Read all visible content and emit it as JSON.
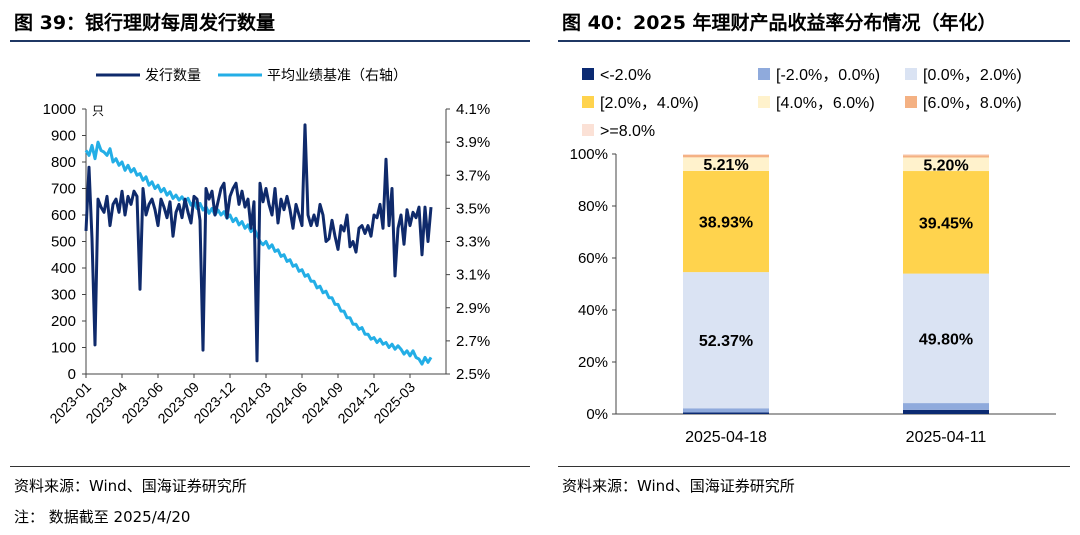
{
  "left": {
    "title": "图 39：银行理财每周发行数量",
    "source": "资料来源：Wind、国海证券研究所",
    "note": "注：  数据截至 2025/4/20"
  },
  "right": {
    "title": "图 40：2025 年理财产品收益率分布情况（年化）",
    "source": "资料来源：Wind、国海证券研究所"
  },
  "colors": {
    "navy": "#0f2a6b",
    "cyan": "#23aee6",
    "c1": "#0b2a72",
    "c2": "#8faadc",
    "c3": "#dae3f3",
    "c4": "#ffd34d",
    "c5": "#fff2cc",
    "c6": "#f4b183",
    "c7": "#fbe1d6"
  },
  "chart_data": [
    {
      "type": "line",
      "title": "",
      "y_unit_label": "只",
      "ylim_left": [
        0,
        1000
      ],
      "yticks_left": [
        "0",
        "100",
        "200",
        "300",
        "400",
        "500",
        "600",
        "700",
        "800",
        "900",
        "1000"
      ],
      "ylim_right": [
        2.5,
        4.1
      ],
      "yticks_right": [
        "2.5%",
        "2.7%",
        "2.9%",
        "3.1%",
        "3.3%",
        "3.5%",
        "3.7%",
        "3.9%",
        "4.1%"
      ],
      "xlim": [
        0,
        120
      ],
      "xticks": [
        {
          "pos": 0,
          "label": "2023-01"
        },
        {
          "pos": 12,
          "label": "2023-04"
        },
        {
          "pos": 24,
          "label": "2023-06"
        },
        {
          "pos": 36,
          "label": "2023-09"
        },
        {
          "pos": 48,
          "label": "2023-12"
        },
        {
          "pos": 60,
          "label": "2024-03"
        },
        {
          "pos": 72,
          "label": "2024-06"
        },
        {
          "pos": 84,
          "label": "2024-09"
        },
        {
          "pos": 96,
          "label": "2024-12"
        },
        {
          "pos": 108,
          "label": "2025-03"
        }
      ],
      "series": [
        {
          "name": "发行数量",
          "axis": "left",
          "values": [
            [
              0,
              540
            ],
            [
              1,
              780
            ],
            [
              2,
              510
            ],
            [
              3,
              110
            ],
            [
              4,
              660
            ],
            [
              5,
              630
            ],
            [
              6,
              610
            ],
            [
              7,
              670
            ],
            [
              8,
              560
            ],
            [
              9,
              640
            ],
            [
              10,
              660
            ],
            [
              11,
              610
            ],
            [
              12,
              690
            ],
            [
              13,
              600
            ],
            [
              14,
              670
            ],
            [
              15,
              640
            ],
            [
              16,
              690
            ],
            [
              17,
              670
            ],
            [
              18,
              320
            ],
            [
              19,
              700
            ],
            [
              20,
              600
            ],
            [
              21,
              640
            ],
            [
              22,
              660
            ],
            [
              23,
              620
            ],
            [
              24,
              560
            ],
            [
              25,
              660
            ],
            [
              26,
              630
            ],
            [
              27,
              590
            ],
            [
              28,
              650
            ],
            [
              29,
              520
            ],
            [
              30,
              610
            ],
            [
              31,
              640
            ],
            [
              32,
              590
            ],
            [
              33,
              660
            ],
            [
              34,
              610
            ],
            [
              35,
              570
            ],
            [
              36,
              670
            ],
            [
              37,
              660
            ],
            [
              38,
              580
            ],
            [
              39,
              90
            ],
            [
              40,
              700
            ],
            [
              41,
              660
            ],
            [
              42,
              690
            ],
            [
              43,
              600
            ],
            [
              44,
              650
            ],
            [
              45,
              700
            ],
            [
              46,
              720
            ],
            [
              47,
              590
            ],
            [
              48,
              670
            ],
            [
              49,
              700
            ],
            [
              50,
              720
            ],
            [
              51,
              640
            ],
            [
              52,
              690
            ],
            [
              53,
              630
            ],
            [
              54,
              660
            ],
            [
              55,
              550
            ],
            [
              56,
              650
            ],
            [
              57,
              50
            ],
            [
              58,
              720
            ],
            [
              59,
              650
            ],
            [
              60,
              700
            ],
            [
              61,
              640
            ],
            [
              62,
              600
            ],
            [
              63,
              700
            ],
            [
              64,
              570
            ],
            [
              65,
              660
            ],
            [
              66,
              620
            ],
            [
              67,
              670
            ],
            [
              68,
              620
            ],
            [
              69,
              550
            ],
            [
              70,
              640
            ],
            [
              71,
              600
            ],
            [
              72,
              560
            ],
            [
              73,
              940
            ],
            [
              74,
              600
            ],
            [
              75,
              560
            ],
            [
              76,
              600
            ],
            [
              77,
              560
            ],
            [
              78,
              640
            ],
            [
              79,
              600
            ],
            [
              80,
              500
            ],
            [
              81,
              510
            ],
            [
              82,
              580
            ],
            [
              83,
              520
            ],
            [
              84,
              470
            ],
            [
              85,
              560
            ],
            [
              86,
              540
            ],
            [
              87,
              600
            ],
            [
              88,
              480
            ],
            [
              89,
              500
            ],
            [
              90,
              460
            ],
            [
              91,
              550
            ],
            [
              92,
              560
            ],
            [
              93,
              530
            ],
            [
              94,
              560
            ],
            [
              95,
              520
            ],
            [
              96,
              600
            ],
            [
              97,
              590
            ],
            [
              98,
              640
            ],
            [
              99,
              550
            ],
            [
              100,
              810
            ],
            [
              101,
              560
            ],
            [
              102,
              700
            ],
            [
              103,
              370
            ],
            [
              104,
              550
            ],
            [
              105,
              600
            ],
            [
              106,
              490
            ],
            [
              107,
              620
            ],
            [
              108,
              560
            ],
            [
              109,
              610
            ],
            [
              110,
              590
            ],
            [
              111,
              630
            ],
            [
              112,
              450
            ],
            [
              113,
              630
            ],
            [
              114,
              500
            ],
            [
              115,
              630
            ]
          ]
        },
        {
          "name": "平均业绩基准（右轴）",
          "axis": "right",
          "values": [
            [
              0,
              3.85
            ],
            [
              1,
              3.82
            ],
            [
              2,
              3.88
            ],
            [
              3,
              3.8
            ],
            [
              4,
              3.9
            ],
            [
              5,
              3.85
            ],
            [
              6,
              3.84
            ],
            [
              7,
              3.82
            ],
            [
              8,
              3.86
            ],
            [
              9,
              3.78
            ],
            [
              10,
              3.8
            ],
            [
              11,
              3.76
            ],
            [
              12,
              3.78
            ],
            [
              13,
              3.73
            ],
            [
              14,
              3.76
            ],
            [
              15,
              3.72
            ],
            [
              16,
              3.74
            ],
            [
              17,
              3.7
            ],
            [
              18,
              3.71
            ],
            [
              19,
              3.67
            ],
            [
              20,
              3.69
            ],
            [
              21,
              3.64
            ],
            [
              22,
              3.66
            ],
            [
              23,
              3.62
            ],
            [
              24,
              3.64
            ],
            [
              25,
              3.6
            ],
            [
              26,
              3.62
            ],
            [
              27,
              3.58
            ],
            [
              28,
              3.6
            ],
            [
              29,
              3.56
            ],
            [
              30,
              3.58
            ],
            [
              31,
              3.55
            ],
            [
              32,
              3.57
            ],
            [
              33,
              3.54
            ],
            [
              34,
              3.56
            ],
            [
              35,
              3.52
            ],
            [
              36,
              3.54
            ],
            [
              37,
              3.5
            ],
            [
              38,
              3.53
            ],
            [
              39,
              3.49
            ],
            [
              40,
              3.51
            ],
            [
              41,
              3.47
            ],
            [
              42,
              3.5
            ],
            [
              43,
              3.46
            ],
            [
              44,
              3.49
            ],
            [
              45,
              3.46
            ],
            [
              46,
              3.48
            ],
            [
              47,
              3.44
            ],
            [
              48,
              3.46
            ],
            [
              49,
              3.42
            ],
            [
              50,
              3.44
            ],
            [
              51,
              3.4
            ],
            [
              52,
              3.42
            ],
            [
              53,
              3.38
            ],
            [
              54,
              3.4
            ],
            [
              55,
              3.36
            ],
            [
              56,
              3.38
            ],
            [
              57,
              3.34
            ],
            [
              58,
              3.3
            ],
            [
              59,
              3.28
            ],
            [
              60,
              3.3
            ],
            [
              61,
              3.26
            ],
            [
              62,
              3.28
            ],
            [
              63,
              3.24
            ],
            [
              64,
              3.25
            ],
            [
              65,
              3.21
            ],
            [
              66,
              3.22
            ],
            [
              67,
              3.18
            ],
            [
              68,
              3.19
            ],
            [
              69,
              3.15
            ],
            [
              70,
              3.16
            ],
            [
              71,
              3.12
            ],
            [
              72,
              3.13
            ],
            [
              73,
              3.09
            ],
            [
              74,
              3.1
            ],
            [
              75,
              3.06
            ],
            [
              76,
              3.06
            ],
            [
              77,
              3.02
            ],
            [
              78,
              3.03
            ],
            [
              79,
              2.99
            ],
            [
              80,
              3.0
            ],
            [
              81,
              2.96
            ],
            [
              82,
              2.96
            ],
            [
              83,
              2.92
            ],
            [
              84,
              2.92
            ],
            [
              85,
              2.88
            ],
            [
              86,
              2.88
            ],
            [
              87,
              2.84
            ],
            [
              88,
              2.84
            ],
            [
              89,
              2.8
            ],
            [
              90,
              2.8
            ],
            [
              91,
              2.77
            ],
            [
              92,
              2.78
            ],
            [
              93,
              2.74
            ],
            [
              94,
              2.74
            ],
            [
              95,
              2.71
            ],
            [
              96,
              2.72
            ],
            [
              97,
              2.69
            ],
            [
              98,
              2.71
            ],
            [
              99,
              2.68
            ],
            [
              100,
              2.69
            ],
            [
              101,
              2.66
            ],
            [
              102,
              2.68
            ],
            [
              103,
              2.65
            ],
            [
              104,
              2.67
            ],
            [
              105,
              2.65
            ],
            [
              106,
              2.62
            ],
            [
              107,
              2.64
            ],
            [
              108,
              2.61
            ],
            [
              109,
              2.64
            ],
            [
              110,
              2.6
            ],
            [
              111,
              2.59
            ],
            [
              112,
              2.56
            ],
            [
              113,
              2.6
            ],
            [
              114,
              2.57
            ],
            [
              115,
              2.6
            ]
          ]
        }
      ]
    },
    {
      "type": "bar",
      "stacked": "percent",
      "categories": [
        "2025-04-18",
        "2025-04-11"
      ],
      "ylim": [
        0,
        100
      ],
      "yticks": [
        "0%",
        "20%",
        "40%",
        "60%",
        "80%",
        "100%"
      ],
      "series": [
        {
          "name": "<-2.0%",
          "values": [
            0.6,
            1.6
          ],
          "color_key": "c1"
        },
        {
          "name": "[-2.0%，0.0%)",
          "values": [
            1.6,
            2.6
          ],
          "color_key": "c2"
        },
        {
          "name": "[0.0%，2.0%)",
          "values": [
            52.37,
            49.8
          ],
          "color_key": "c3",
          "labels": [
            "52.37%",
            "49.80%"
          ]
        },
        {
          "name": "[2.0%，4.0%)",
          "values": [
            38.93,
            39.45
          ],
          "color_key": "c4",
          "labels": [
            "38.93%",
            "39.45%"
          ]
        },
        {
          "name": "[4.0%，6.0%)",
          "values": [
            5.21,
            5.2
          ],
          "color_key": "c5",
          "labels": [
            "5.21%",
            "5.20%"
          ]
        },
        {
          "name": "[6.0%，8.0%)",
          "values": [
            0.9,
            0.9
          ],
          "color_key": "c6"
        },
        {
          "name": ">=8.0%",
          "values": [
            0.39,
            0.45
          ],
          "color_key": "c7"
        }
      ]
    }
  ]
}
